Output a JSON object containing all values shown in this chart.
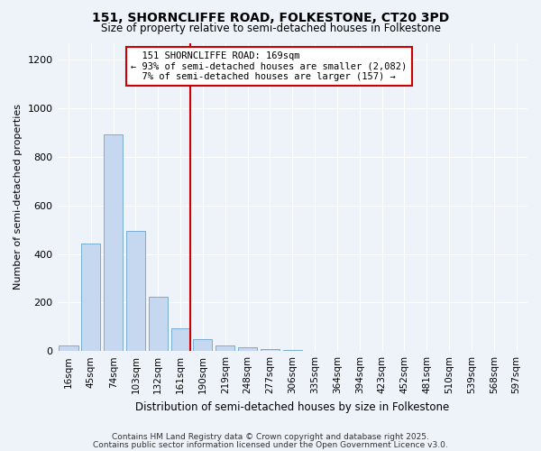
{
  "title_line1": "151, SHORNCLIFFE ROAD, FOLKESTONE, CT20 3PD",
  "title_line2": "Size of property relative to semi-detached houses in Folkestone",
  "xlabel": "Distribution of semi-detached houses by size in Folkestone",
  "ylabel": "Number of semi-detached properties",
  "bar_labels": [
    "16sqm",
    "45sqm",
    "74sqm",
    "103sqm",
    "132sqm",
    "161sqm",
    "190sqm",
    "219sqm",
    "248sqm",
    "277sqm",
    "306sqm",
    "335sqm",
    "364sqm",
    "394sqm",
    "423sqm",
    "452sqm",
    "481sqm",
    "510sqm",
    "539sqm",
    "568sqm",
    "597sqm"
  ],
  "bar_values": [
    22,
    443,
    893,
    495,
    225,
    95,
    50,
    22,
    15,
    8,
    5,
    0,
    0,
    0,
    0,
    0,
    0,
    0,
    0,
    0,
    0
  ],
  "bar_color": "#c5d8f0",
  "bar_edgecolor": "#7aadd4",
  "property_label": "151 SHORNCLIFFE ROAD: 169sqm",
  "pct_smaller": 93,
  "count_smaller": 2082,
  "pct_larger": 7,
  "count_larger": 157,
  "vline_color": "#cc0000",
  "annotation_box_edgecolor": "#cc0000",
  "vline_x_index": 5.43,
  "ylim": [
    0,
    1270
  ],
  "yticks": [
    0,
    200,
    400,
    600,
    800,
    1000,
    1200
  ],
  "background_color": "#eef2f9",
  "grid_color": "#ffffff",
  "footer_line1": "Contains HM Land Registry data © Crown copyright and database right 2025.",
  "footer_line2": "Contains public sector information licensed under the Open Government Licence v3.0."
}
